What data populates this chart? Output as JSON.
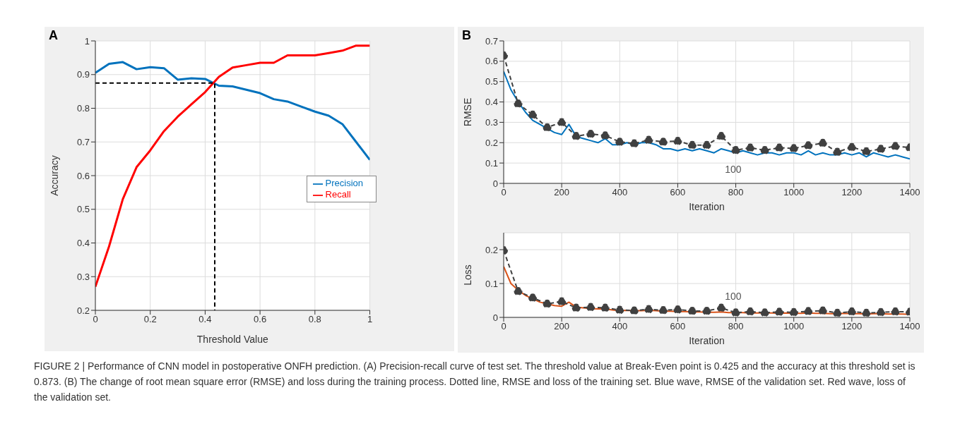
{
  "chart_data": [
    {
      "type": "line",
      "title": "A",
      "xlabel": "Threshold Value",
      "ylabel": "Accuracy",
      "x": [
        0,
        0.05,
        0.1,
        0.15,
        0.2,
        0.25,
        0.3,
        0.35,
        0.4,
        0.45,
        0.5,
        0.55,
        0.6,
        0.65,
        0.7,
        0.75,
        0.8,
        0.85,
        0.9,
        0.95,
        1
      ],
      "series": [
        {
          "name": "Precision",
          "color": "#0072bd",
          "values": [
            0.905,
            0.932,
            0.937,
            0.916,
            0.922,
            0.919,
            0.885,
            0.889,
            0.887,
            0.867,
            0.865,
            0.855,
            0.845,
            0.827,
            0.82,
            0.805,
            0.79,
            0.778,
            0.753,
            0.7,
            0.647
          ]
        },
        {
          "name": "Recall",
          "color": "#ff0000",
          "values": [
            0.27,
            0.39,
            0.53,
            0.625,
            0.675,
            0.732,
            0.775,
            0.812,
            0.848,
            0.893,
            0.921,
            0.928,
            0.935,
            0.935,
            0.957,
            0.957,
            0.957,
            0.964,
            0.971,
            0.986,
            0.986
          ]
        },
        {
          "color": "#000000",
          "line_style": "dashed",
          "x": [
            0,
            0.435,
            0.435
          ],
          "values": [
            0.875,
            0.875,
            0.2
          ]
        }
      ],
      "xlim": [
        0,
        1
      ],
      "xticks": [
        0,
        0.2,
        0.4,
        0.6,
        0.8,
        1
      ],
      "ylim": [
        0.2,
        1
      ],
      "yticks": [
        0.2,
        0.3,
        0.4,
        0.5,
        0.6,
        0.7,
        0.8,
        0.9,
        1
      ],
      "grid": true,
      "legend": "right",
      "marker": "none",
      "line_style": "solid",
      "annotations": [
        "FIGURE 2 | Performance of CNN model in postoperative ONFH prediction. (A) Precision-recall curve of test set. The threshold value at Break-Even point is 0.425 and the accuracy at this threshold set is 0.873. (B) The change of root mean square error (RMSE) and loss during the training process. Dotted line, RMSE and loss of the training set. Blue wave, RMSE of the validation set. Red wave, loss of the validation set."
      ]
    },
    {
      "type": "line",
      "title": "B",
      "xlabel": "Iteration",
      "ylabel": "RMSE",
      "series": [
        {
          "color": "#0072bd",
          "marker": "none",
          "line_style": "solid",
          "x": [
            0,
            25,
            50,
            75,
            100,
            125,
            150,
            175,
            200,
            225,
            250,
            275,
            300,
            325,
            350,
            375,
            400,
            425,
            450,
            475,
            500,
            525,
            550,
            575,
            600,
            625,
            650,
            675,
            700,
            725,
            750,
            775,
            800,
            825,
            850,
            875,
            900,
            925,
            950,
            975,
            1000,
            1025,
            1050,
            1075,
            1100,
            1125,
            1150,
            1175,
            1200,
            1225,
            1250,
            1275,
            1300,
            1325,
            1350,
            1375,
            1400
          ],
          "values": [
            0.55,
            0.46,
            0.4,
            0.35,
            0.31,
            0.29,
            0.27,
            0.25,
            0.24,
            0.29,
            0.23,
            0.22,
            0.21,
            0.2,
            0.22,
            0.19,
            0.19,
            0.2,
            0.19,
            0.2,
            0.2,
            0.19,
            0.17,
            0.17,
            0.16,
            0.17,
            0.16,
            0.17,
            0.16,
            0.15,
            0.17,
            0.16,
            0.15,
            0.16,
            0.15,
            0.14,
            0.15,
            0.15,
            0.14,
            0.15,
            0.15,
            0.14,
            0.16,
            0.14,
            0.15,
            0.14,
            0.14,
            0.15,
            0.14,
            0.15,
            0.13,
            0.15,
            0.14,
            0.13,
            0.14,
            0.13,
            0.12
          ]
        },
        {
          "color": "#404040",
          "marker": "circle",
          "line_style": "dashed",
          "x": [
            0,
            50,
            100,
            150,
            200,
            250,
            300,
            350,
            400,
            450,
            500,
            550,
            600,
            650,
            700,
            750,
            800,
            850,
            900,
            950,
            1000,
            1050,
            1100,
            1150,
            1200,
            1250,
            1300,
            1350,
            1400
          ],
          "values": [
            0.628,
            0.392,
            0.337,
            0.275,
            0.3,
            0.232,
            0.243,
            0.235,
            0.204,
            0.196,
            0.213,
            0.204,
            0.208,
            0.188,
            0.188,
            0.232,
            0.163,
            0.175,
            0.163,
            0.175,
            0.172,
            0.186,
            0.198,
            0.154,
            0.178,
            0.157,
            0.169,
            0.183,
            0.176
          ]
        }
      ],
      "xlim": [
        0,
        1400
      ],
      "xticks": [
        0,
        200,
        400,
        600,
        800,
        1000,
        1200,
        1400
      ],
      "ylim": [
        0,
        0.7
      ],
      "yticks": [
        0,
        0.1,
        0.2,
        0.3,
        0.4,
        0.5,
        0.6,
        0.7
      ],
      "grid": true,
      "annotations": [
        "100"
      ]
    },
    {
      "type": "line",
      "xlabel": "Iteration",
      "ylabel": "Loss",
      "series": [
        {
          "color": "#d95319",
          "marker": "none",
          "line_style": "solid",
          "x": [
            0,
            25,
            50,
            75,
            100,
            125,
            150,
            175,
            200,
            225,
            250,
            275,
            300,
            325,
            350,
            375,
            400,
            425,
            450,
            475,
            500,
            525,
            550,
            575,
            600,
            625,
            650,
            675,
            700,
            725,
            750,
            775,
            800,
            825,
            850,
            875,
            900,
            925,
            950,
            975,
            1000,
            1025,
            1050,
            1075,
            1100,
            1125,
            1150,
            1175,
            1200,
            1225,
            1250,
            1275,
            1300,
            1325,
            1350,
            1375,
            1400
          ],
          "values": [
            0.15,
            0.1,
            0.08,
            0.065,
            0.055,
            0.045,
            0.04,
            0.035,
            0.033,
            0.045,
            0.03,
            0.028,
            0.026,
            0.025,
            0.025,
            0.022,
            0.02,
            0.021,
            0.02,
            0.02,
            0.021,
            0.02,
            0.018,
            0.018,
            0.017,
            0.017,
            0.016,
            0.016,
            0.015,
            0.015,
            0.016,
            0.014,
            0.014,
            0.014,
            0.013,
            0.013,
            0.013,
            0.013,
            0.012,
            0.013,
            0.012,
            0.012,
            0.013,
            0.012,
            0.012,
            0.011,
            0.011,
            0.012,
            0.011,
            0.011,
            0.01,
            0.011,
            0.011,
            0.01,
            0.01,
            0.01,
            0.009
          ]
        },
        {
          "color": "#404040",
          "marker": "circle",
          "line_style": "dashed",
          "x": [
            0,
            50,
            100,
            150,
            200,
            250,
            300,
            350,
            400,
            450,
            500,
            550,
            600,
            650,
            700,
            750,
            800,
            850,
            900,
            950,
            1000,
            1050,
            1100,
            1150,
            1200,
            1250,
            1300,
            1350,
            1400
          ],
          "values": [
            0.198,
            0.077,
            0.058,
            0.04,
            0.047,
            0.028,
            0.03,
            0.028,
            0.022,
            0.02,
            0.024,
            0.021,
            0.023,
            0.019,
            0.019,
            0.028,
            0.014,
            0.017,
            0.014,
            0.016,
            0.015,
            0.018,
            0.02,
            0.013,
            0.017,
            0.013,
            0.015,
            0.017,
            0.016
          ]
        }
      ],
      "xlim": [
        0,
        1400
      ],
      "xticks": [
        0,
        200,
        400,
        600,
        800,
        1000,
        1200,
        1400
      ],
      "ylim": [
        0,
        0.25
      ],
      "yticks": [
        0,
        0.1,
        0.2
      ],
      "grid": true,
      "annotations": [
        "100"
      ]
    }
  ]
}
